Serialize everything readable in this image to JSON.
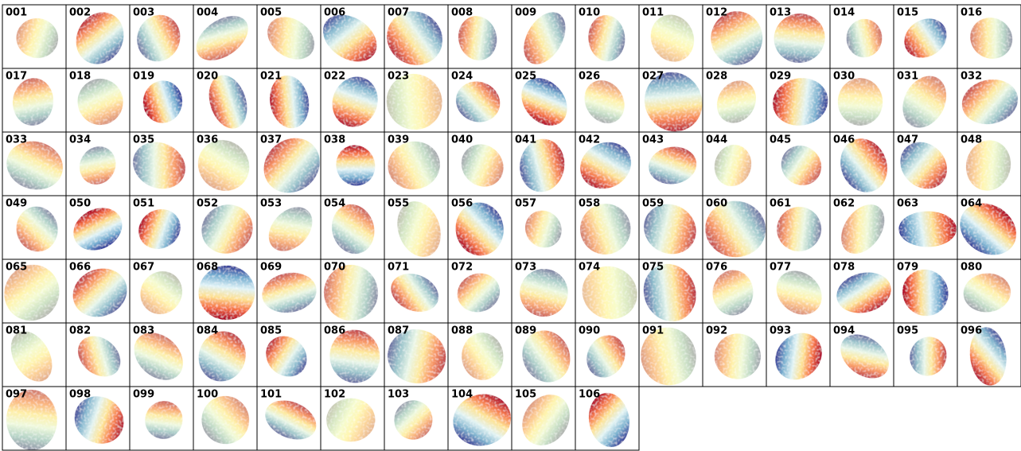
{
  "panels": [
    "001",
    "002",
    "003",
    "004",
    "005",
    "006",
    "007",
    "008",
    "009",
    "010",
    "011",
    "012",
    "013",
    "014",
    "015",
    "016",
    "017",
    "018",
    "019",
    "020",
    "021",
    "022",
    "023",
    "024",
    "025",
    "026",
    "027",
    "028",
    "029",
    "030",
    "031",
    "032",
    "033",
    "034",
    "035",
    "036",
    "037",
    "038",
    "039",
    "040",
    "041",
    "042",
    "043",
    "044",
    "045",
    "046",
    "047",
    "048",
    "049",
    "050",
    "051",
    "052",
    "053",
    "054",
    "055",
    "056",
    "057",
    "058",
    "059",
    "060",
    "061",
    "062",
    "063",
    "064",
    "065",
    "066",
    "067",
    "068",
    "069",
    "070",
    "071",
    "072",
    "073",
    "074",
    "075",
    "076",
    "077",
    "078",
    "079",
    "080",
    "081",
    "082",
    "083",
    "084",
    "085",
    "086",
    "087",
    "088",
    "089",
    "090",
    "091",
    "092",
    "093",
    "094",
    "095",
    "096",
    "097",
    "098",
    "099",
    "100",
    "101",
    "102",
    "103",
    "104",
    "105",
    "106"
  ]
}
